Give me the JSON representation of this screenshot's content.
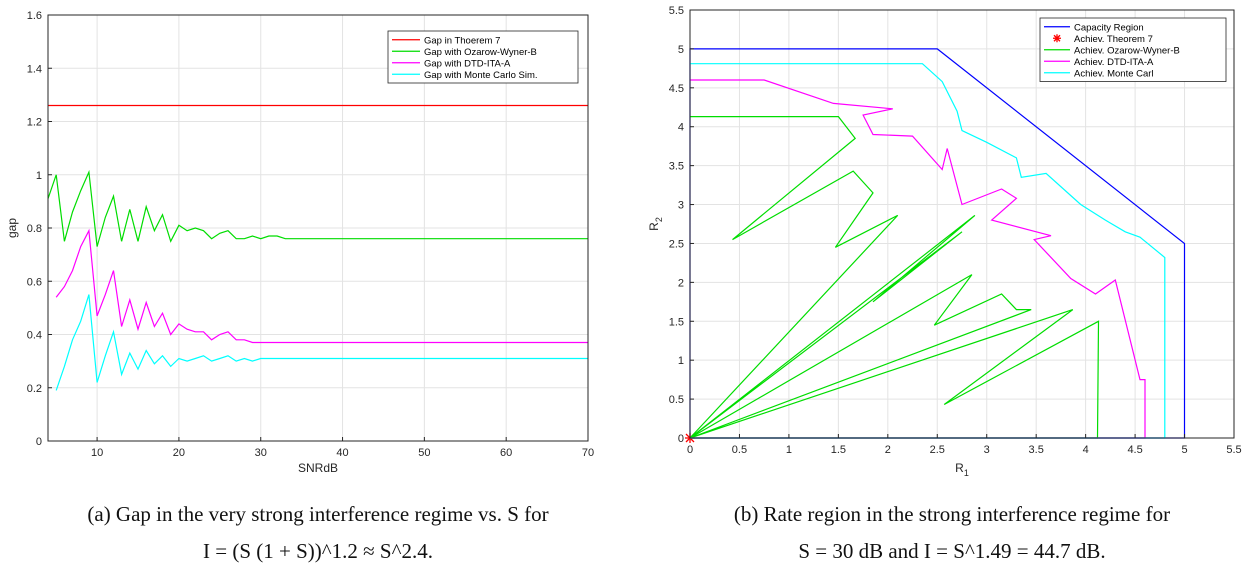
{
  "captions": {
    "a_line1": "(a) Gap in the very strong interference regime vs. S for",
    "a_line2": "I = (S (1 + S))^1.2 ≈ S^2.4.",
    "b_line1": "(b) Rate region in the strong interference regime for",
    "b_line2": "S = 30 dB and I = S^1.49 = 44.7 dB."
  },
  "chart_data": [
    {
      "type": "line",
      "title": "",
      "xlabel": "SNRdB",
      "ylabel": "gap",
      "xlim": [
        4,
        70
      ],
      "ylim": [
        0,
        1.6
      ],
      "xticks": [
        10,
        20,
        30,
        40,
        50,
        60,
        70
      ],
      "yticks": [
        0,
        0.2,
        0.4,
        0.6,
        0.8,
        1,
        1.2,
        1.4,
        1.6
      ],
      "xtick_labels": [
        "10",
        "20",
        "30",
        "40",
        "50",
        "60",
        "70"
      ],
      "ytick_labels": [
        "0",
        "0.2",
        "0.4",
        "0.6",
        "0.8",
        "1",
        "1.2",
        "1.4",
        "1.6"
      ],
      "grid": true,
      "legend_position": "top-right",
      "series": [
        {
          "name": "Gap in Thoerem 7",
          "color": "#ff0000",
          "x": [
            4,
            70
          ],
          "y": [
            1.26,
            1.26
          ]
        },
        {
          "name": "Gap with Ozarow-Wyner-B",
          "color": "#00dd00",
          "x": [
            4,
            5,
            6,
            7,
            8,
            9,
            10,
            11,
            12,
            13,
            14,
            15,
            16,
            17,
            18,
            19,
            20,
            21,
            22,
            23,
            24,
            25,
            26,
            27,
            28,
            29,
            30,
            31,
            32,
            33,
            34,
            35,
            40,
            50,
            60,
            70
          ],
          "y": [
            0.91,
            1.0,
            0.75,
            0.86,
            0.94,
            1.01,
            0.73,
            0.84,
            0.92,
            0.75,
            0.87,
            0.75,
            0.88,
            0.79,
            0.85,
            0.75,
            0.81,
            0.79,
            0.8,
            0.79,
            0.76,
            0.78,
            0.79,
            0.76,
            0.76,
            0.77,
            0.76,
            0.77,
            0.77,
            0.76,
            0.76,
            0.76,
            0.76,
            0.76,
            0.76,
            0.76
          ]
        },
        {
          "name": "Gap with DTD-ITA-A",
          "color": "#ff00ff",
          "x": [
            5,
            6,
            7,
            8,
            9,
            10,
            11,
            12,
            13,
            14,
            15,
            16,
            17,
            18,
            19,
            20,
            21,
            22,
            23,
            24,
            25,
            26,
            27,
            28,
            29,
            30,
            40,
            50,
            60,
            70
          ],
          "y": [
            0.54,
            0.58,
            0.64,
            0.73,
            0.79,
            0.47,
            0.55,
            0.64,
            0.43,
            0.53,
            0.42,
            0.52,
            0.43,
            0.48,
            0.4,
            0.44,
            0.42,
            0.41,
            0.41,
            0.38,
            0.4,
            0.41,
            0.38,
            0.38,
            0.37,
            0.37,
            0.37,
            0.37,
            0.37,
            0.37
          ]
        },
        {
          "name": "Gap with Monte Carlo Sim.",
          "color": "#00ffff",
          "x": [
            5,
            6,
            7,
            8,
            9,
            10,
            11,
            12,
            13,
            14,
            15,
            16,
            17,
            18,
            19,
            20,
            21,
            22,
            23,
            24,
            25,
            26,
            27,
            28,
            29,
            30,
            35,
            40,
            50,
            60,
            70
          ],
          "y": [
            0.19,
            0.28,
            0.38,
            0.45,
            0.55,
            0.22,
            0.32,
            0.41,
            0.25,
            0.33,
            0.27,
            0.34,
            0.29,
            0.32,
            0.28,
            0.31,
            0.3,
            0.31,
            0.32,
            0.3,
            0.31,
            0.32,
            0.3,
            0.31,
            0.3,
            0.31,
            0.31,
            0.31,
            0.31,
            0.31,
            0.31
          ]
        }
      ]
    },
    {
      "type": "line",
      "title": "",
      "xlabel": "R1",
      "ylabel": "R2",
      "xlim": [
        0,
        5.5
      ],
      "ylim": [
        0,
        5.5
      ],
      "xticks": [
        0,
        0.5,
        1,
        1.5,
        2,
        2.5,
        3,
        3.5,
        4,
        4.5,
        5,
        5.5
      ],
      "yticks": [
        0,
        0.5,
        1,
        1.5,
        2,
        2.5,
        3,
        3.5,
        4,
        4.5,
        5,
        5.5
      ],
      "xtick_labels": [
        "0",
        "0.5",
        "1",
        "1.5",
        "2",
        "2.5",
        "3",
        "3.5",
        "4",
        "4.5",
        "5",
        "5.5"
      ],
      "ytick_labels": [
        "0",
        "0.5",
        "1",
        "1.5",
        "2",
        "2.5",
        "3",
        "3.5",
        "4",
        "4.5",
        "5",
        "5.5"
      ],
      "grid": true,
      "legend_position": "top-right",
      "series": [
        {
          "name": "Capacity Region",
          "color": "#0000ff",
          "x": [
            0,
            0,
            2.5,
            5,
            5,
            0
          ],
          "y": [
            0,
            5,
            5,
            2.5,
            0,
            0
          ]
        },
        {
          "name": "Achiev. Theorem 7",
          "color": "#ff0000",
          "marker": "asterisk",
          "x": [
            0
          ],
          "y": [
            0
          ]
        },
        {
          "name": "Achiev. Ozarow-Wyner-B",
          "color": "#00dd00",
          "x": [
            0,
            1.5,
            1.67,
            0.43,
            1.65,
            1.85,
            1.47,
            2.1,
            0,
            2.88,
            1.85,
            2.75,
            0,
            2.85,
            2.47,
            3.15,
            3.3,
            3.45,
            0,
            3.87,
            2.57,
            4.13,
            4.12,
            0
          ],
          "y": [
            4.13,
            4.13,
            3.85,
            2.55,
            3.43,
            3.15,
            2.45,
            2.86,
            0,
            2.86,
            1.75,
            2.65,
            0,
            2.1,
            1.45,
            1.85,
            1.65,
            1.65,
            0,
            1.65,
            0.43,
            1.5,
            0,
            0
          ]
        },
        {
          "name": "Achiev. DTD-ITA-A",
          "color": "#ff00ff",
          "x": [
            0,
            0.75,
            1.45,
            2.05,
            1.75,
            1.85,
            2.25,
            2.55,
            2.6,
            2.75,
            3.15,
            3.3,
            3.05,
            3.65,
            3.48,
            3.85,
            4.1,
            4.3,
            4.55,
            4.6,
            4.6,
            0
          ],
          "y": [
            4.6,
            4.6,
            4.3,
            4.23,
            4.15,
            3.9,
            3.88,
            3.45,
            3.72,
            3.0,
            3.2,
            3.08,
            2.8,
            2.6,
            2.55,
            2.05,
            1.85,
            2.03,
            0.75,
            0.75,
            0,
            0
          ]
        },
        {
          "name": "Achiev. Monte Carl",
          "color": "#00ffff",
          "x": [
            0,
            2.35,
            2.55,
            2.7,
            2.75,
            3.0,
            3.3,
            3.35,
            3.6,
            3.95,
            4.2,
            4.4,
            4.55,
            4.8,
            4.8,
            0
          ],
          "y": [
            4.81,
            4.81,
            4.58,
            4.2,
            3.95,
            3.8,
            3.6,
            3.35,
            3.4,
            3.0,
            2.8,
            2.65,
            2.58,
            2.32,
            0,
            0
          ]
        }
      ]
    }
  ]
}
